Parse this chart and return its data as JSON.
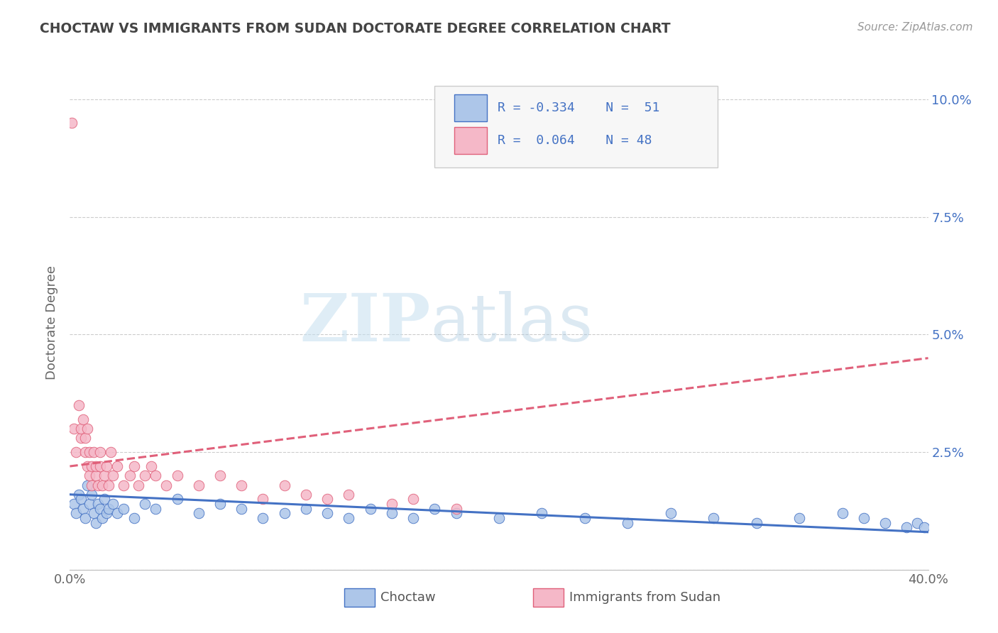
{
  "title": "CHOCTAW VS IMMIGRANTS FROM SUDAN DOCTORATE DEGREE CORRELATION CHART",
  "source": "Source: ZipAtlas.com",
  "ylabel": "Doctorate Degree",
  "xlim": [
    0.0,
    0.4
  ],
  "ylim": [
    0.0,
    0.105
  ],
  "yticks": [
    0.0,
    0.025,
    0.05,
    0.075,
    0.1
  ],
  "ytick_labels_right": [
    "",
    "2.5%",
    "5.0%",
    "7.5%",
    "10.0%"
  ],
  "xticks": [
    0.0,
    0.1,
    0.2,
    0.3,
    0.4
  ],
  "xtick_labels": [
    "0.0%",
    "",
    "",
    "",
    "40.0%"
  ],
  "watermark_zip": "ZIP",
  "watermark_atlas": "atlas",
  "legend_label1": "Choctaw",
  "legend_label2": "Immigrants from Sudan",
  "color_choctaw": "#adc6e9",
  "color_sudan": "#f5b8c8",
  "color_choctaw_edge": "#4472c4",
  "color_sudan_edge": "#e0607a",
  "color_choctaw_line": "#4472c4",
  "color_sudan_line": "#e0607a",
  "background_color": "#ffffff",
  "grid_color": "#cccccc",
  "title_color": "#444444",
  "choctaw_x": [
    0.002,
    0.003,
    0.004,
    0.005,
    0.006,
    0.007,
    0.008,
    0.009,
    0.01,
    0.011,
    0.012,
    0.013,
    0.014,
    0.015,
    0.016,
    0.017,
    0.018,
    0.02,
    0.022,
    0.025,
    0.03,
    0.035,
    0.04,
    0.05,
    0.06,
    0.07,
    0.08,
    0.09,
    0.1,
    0.11,
    0.12,
    0.13,
    0.14,
    0.15,
    0.16,
    0.17,
    0.18,
    0.2,
    0.22,
    0.24,
    0.26,
    0.28,
    0.3,
    0.32,
    0.34,
    0.36,
    0.37,
    0.38,
    0.39,
    0.395,
    0.398
  ],
  "choctaw_y": [
    0.014,
    0.012,
    0.016,
    0.015,
    0.013,
    0.011,
    0.018,
    0.014,
    0.016,
    0.012,
    0.01,
    0.014,
    0.013,
    0.011,
    0.015,
    0.012,
    0.013,
    0.014,
    0.012,
    0.013,
    0.011,
    0.014,
    0.013,
    0.015,
    0.012,
    0.014,
    0.013,
    0.011,
    0.012,
    0.013,
    0.012,
    0.011,
    0.013,
    0.012,
    0.011,
    0.013,
    0.012,
    0.011,
    0.012,
    0.011,
    0.01,
    0.012,
    0.011,
    0.01,
    0.011,
    0.012,
    0.011,
    0.01,
    0.009,
    0.01,
    0.009
  ],
  "sudan_x": [
    0.001,
    0.002,
    0.003,
    0.004,
    0.005,
    0.005,
    0.006,
    0.007,
    0.007,
    0.008,
    0.008,
    0.009,
    0.009,
    0.01,
    0.01,
    0.011,
    0.012,
    0.012,
    0.013,
    0.014,
    0.014,
    0.015,
    0.016,
    0.017,
    0.018,
    0.019,
    0.02,
    0.022,
    0.025,
    0.028,
    0.03,
    0.032,
    0.035,
    0.038,
    0.04,
    0.045,
    0.05,
    0.06,
    0.07,
    0.08,
    0.09,
    0.1,
    0.11,
    0.12,
    0.13,
    0.15,
    0.16,
    0.18
  ],
  "sudan_y": [
    0.095,
    0.03,
    0.025,
    0.035,
    0.028,
    0.03,
    0.032,
    0.025,
    0.028,
    0.022,
    0.03,
    0.02,
    0.025,
    0.018,
    0.022,
    0.025,
    0.02,
    0.022,
    0.018,
    0.022,
    0.025,
    0.018,
    0.02,
    0.022,
    0.018,
    0.025,
    0.02,
    0.022,
    0.018,
    0.02,
    0.022,
    0.018,
    0.02,
    0.022,
    0.02,
    0.018,
    0.02,
    0.018,
    0.02,
    0.018,
    0.015,
    0.018,
    0.016,
    0.015,
    0.016,
    0.014,
    0.015,
    0.013
  ]
}
